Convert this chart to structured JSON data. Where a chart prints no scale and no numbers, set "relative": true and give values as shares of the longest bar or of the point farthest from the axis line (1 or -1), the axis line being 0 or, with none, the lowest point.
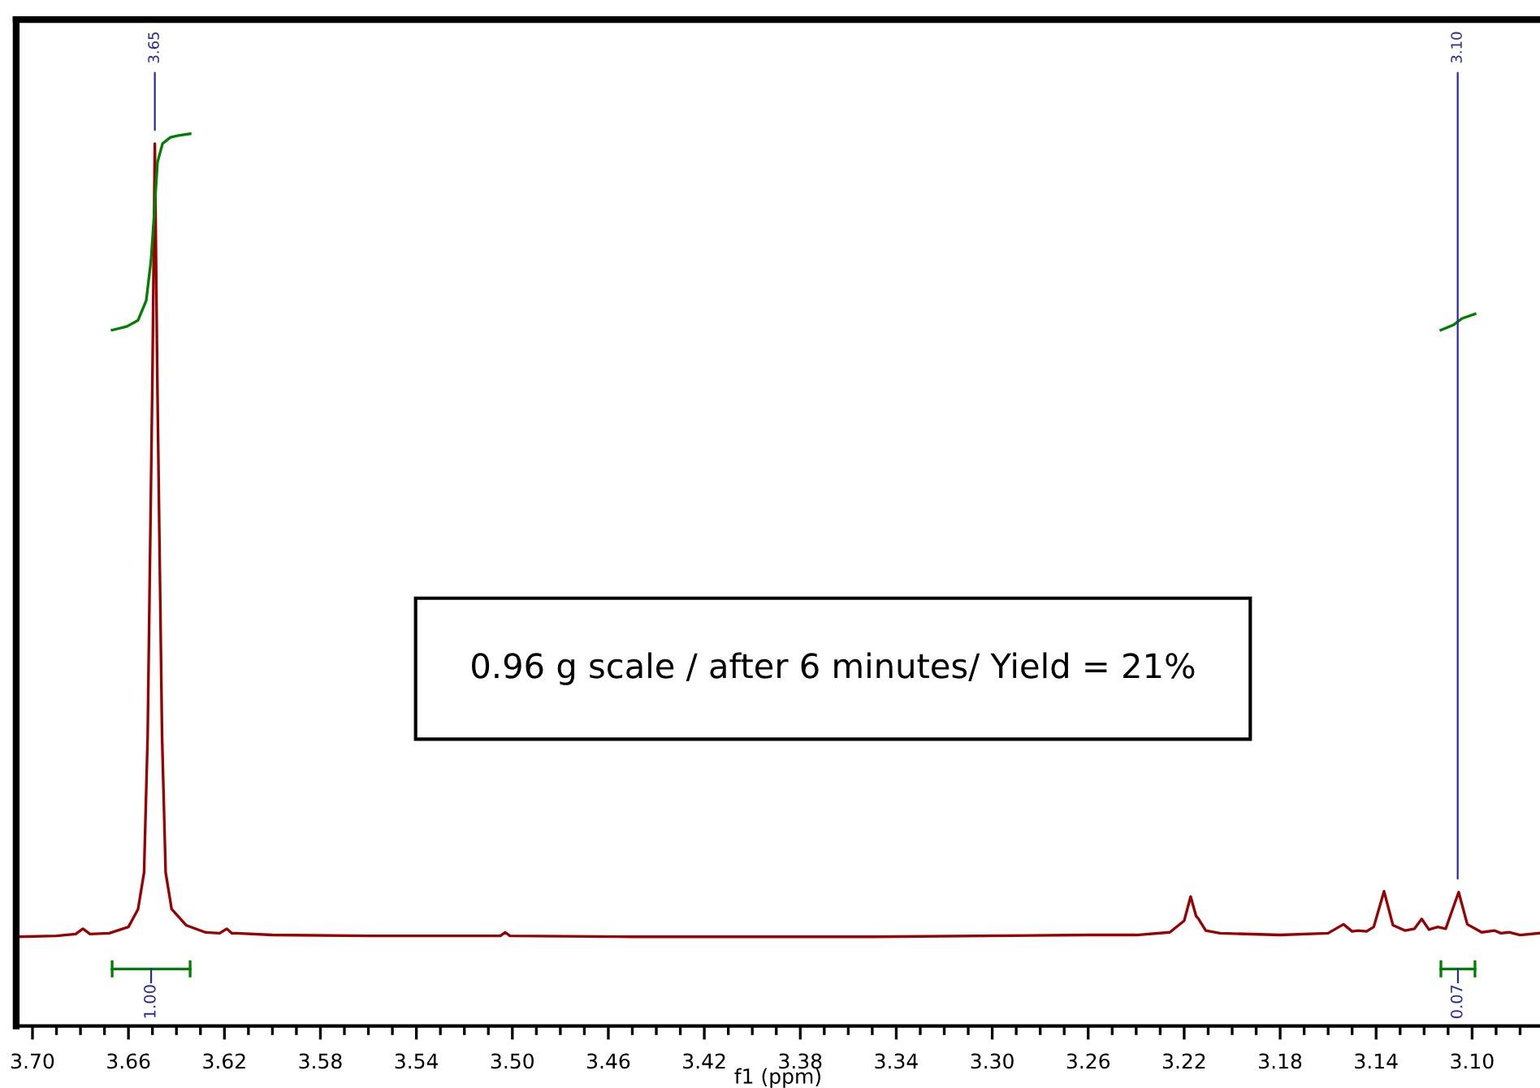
{
  "chart_data": {
    "type": "line",
    "xlabel": "f1 (ppm)",
    "relative": true,
    "xlim": [
      3.7068,
      3.0717
    ],
    "xticks": [
      {
        "value": 3.7,
        "label": "3.70"
      },
      {
        "value": 3.69,
        "label": null
      },
      {
        "value": 3.68,
        "label": null
      },
      {
        "value": 3.67,
        "label": null
      },
      {
        "value": 3.66,
        "label": "3.66"
      },
      {
        "value": 3.65,
        "label": null
      },
      {
        "value": 3.64,
        "label": null
      },
      {
        "value": 3.63,
        "label": null
      },
      {
        "value": 3.62,
        "label": "3.62"
      },
      {
        "value": 3.61,
        "label": null
      },
      {
        "value": 3.6,
        "label": null
      },
      {
        "value": 3.59,
        "label": null
      },
      {
        "value": 3.58,
        "label": "3.58"
      },
      {
        "value": 3.57,
        "label": null
      },
      {
        "value": 3.56,
        "label": null
      },
      {
        "value": 3.55,
        "label": null
      },
      {
        "value": 3.54,
        "label": "3.54"
      },
      {
        "value": 3.53,
        "label": null
      },
      {
        "value": 3.52,
        "label": null
      },
      {
        "value": 3.51,
        "label": null
      },
      {
        "value": 3.5,
        "label": "3.50"
      },
      {
        "value": 3.49,
        "label": null
      },
      {
        "value": 3.48,
        "label": null
      },
      {
        "value": 3.47,
        "label": null
      },
      {
        "value": 3.46,
        "label": "3.46"
      },
      {
        "value": 3.45,
        "label": null
      },
      {
        "value": 3.44,
        "label": null
      },
      {
        "value": 3.43,
        "label": null
      },
      {
        "value": 3.42,
        "label": "3.42"
      },
      {
        "value": 3.41,
        "label": null
      },
      {
        "value": 3.4,
        "label": null
      },
      {
        "value": 3.39,
        "label": null
      },
      {
        "value": 3.38,
        "label": "3.38"
      },
      {
        "value": 3.37,
        "label": null
      },
      {
        "value": 3.36,
        "label": null
      },
      {
        "value": 3.35,
        "label": null
      },
      {
        "value": 3.34,
        "label": "3.34"
      },
      {
        "value": 3.33,
        "label": null
      },
      {
        "value": 3.32,
        "label": null
      },
      {
        "value": 3.31,
        "label": null
      },
      {
        "value": 3.3,
        "label": "3.30"
      },
      {
        "value": 3.29,
        "label": null
      },
      {
        "value": 3.28,
        "label": null
      },
      {
        "value": 3.27,
        "label": null
      },
      {
        "value": 3.26,
        "label": "3.26"
      },
      {
        "value": 3.25,
        "label": null
      },
      {
        "value": 3.24,
        "label": null
      },
      {
        "value": 3.23,
        "label": null
      },
      {
        "value": 3.22,
        "label": "3.22"
      },
      {
        "value": 3.21,
        "label": null
      },
      {
        "value": 3.2,
        "label": null
      },
      {
        "value": 3.19,
        "label": null
      },
      {
        "value": 3.18,
        "label": "3.18"
      },
      {
        "value": 3.17,
        "label": null
      },
      {
        "value": 3.16,
        "label": null
      },
      {
        "value": 3.15,
        "label": null
      },
      {
        "value": 3.14,
        "label": "3.14"
      },
      {
        "value": 3.13,
        "label": null
      },
      {
        "value": 3.12,
        "label": null
      },
      {
        "value": 3.11,
        "label": null
      },
      {
        "value": 3.1,
        "label": "3.10"
      },
      {
        "value": 3.09,
        "label": null
      },
      {
        "value": 3.08,
        "label": null
      }
    ],
    "series": [
      {
        "color": "#990000",
        "x": [
          3.706,
          3.69,
          3.682,
          3.679,
          3.676,
          3.668,
          3.66,
          3.656,
          3.6535,
          3.652,
          3.65,
          3.649,
          3.648,
          3.646,
          3.6445,
          3.642,
          3.636,
          3.628,
          3.622,
          3.619,
          3.617,
          3.615,
          3.6,
          3.56,
          3.505,
          3.503,
          3.501,
          3.45,
          3.35,
          3.26,
          3.24,
          3.226,
          3.22,
          3.2173,
          3.215,
          3.214,
          3.211,
          3.205,
          3.18,
          3.16,
          3.1536,
          3.15,
          3.1475,
          3.144,
          3.141,
          3.1367,
          3.133,
          3.128,
          3.124,
          3.121,
          3.118,
          3.1143,
          3.111,
          3.1056,
          3.102,
          3.096,
          3.0907,
          3.088,
          3.0846,
          3.08,
          3.072
        ],
        "values": [
          0.1,
          0.101,
          0.103,
          0.109,
          0.103,
          0.104,
          0.111,
          0.131,
          0.172,
          0.325,
          0.73,
          0.989,
          0.73,
          0.325,
          0.172,
          0.131,
          0.113,
          0.105,
          0.104,
          0.109,
          0.104,
          0.104,
          0.102,
          0.101,
          0.101,
          0.105,
          0.101,
          0.1,
          0.1,
          0.102,
          0.102,
          0.105,
          0.118,
          0.145,
          0.123,
          0.12,
          0.107,
          0.104,
          0.102,
          0.104,
          0.114,
          0.106,
          0.107,
          0.106,
          0.111,
          0.151,
          0.113,
          0.107,
          0.109,
          0.12,
          0.108,
          0.111,
          0.109,
          0.15,
          0.114,
          0.105,
          0.107,
          0.104,
          0.105,
          0.102,
          0.104
        ]
      },
      {
        "type": "line",
        "color": "#008000",
        "x": [
          3.6668,
          3.6607,
          3.656,
          3.6526,
          3.6506,
          3.6492,
          3.6479,
          3.6458,
          3.6425,
          3.6391,
          3.6343
        ],
        "values": [
          0.78,
          0.784,
          0.791,
          0.813,
          0.858,
          0.913,
          0.968,
          0.989,
          0.996,
          0.998,
          1.0
        ]
      },
      {
        "type": "line",
        "color": "#008000",
        "x": [
          3.113,
          3.1076,
          3.1042,
          3.0988
        ],
        "values": [
          0.78,
          0.786,
          0.793,
          0.798
        ]
      }
    ],
    "annotations": [
      {
        "text": "3.65",
        "x": 3.649,
        "y": 0.989
      },
      {
        "text": "3.10",
        "x": 3.106,
        "y": 0.15
      },
      "1.00",
      "0.07",
      "0.96 g scale / after 6 minutes/ Yield = 21%"
    ]
  }
}
